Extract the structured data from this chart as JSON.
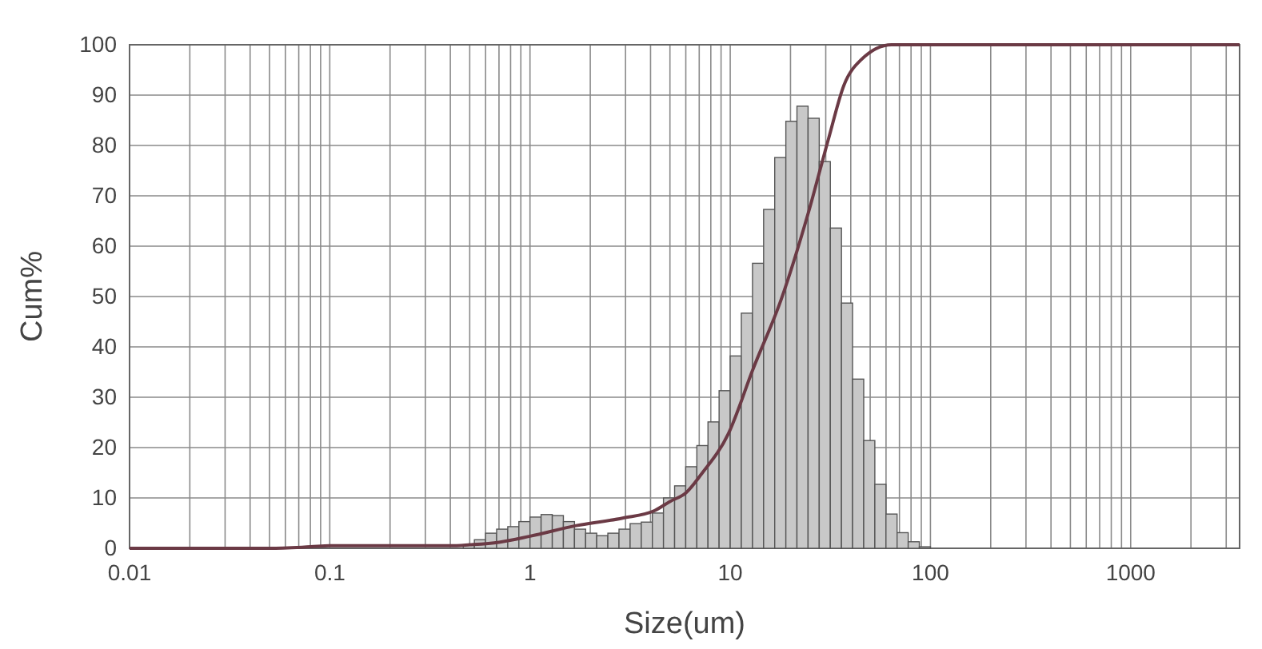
{
  "chart_data": {
    "type": "histogram",
    "xlabel": "Size(um)",
    "ylabel": "Cum%",
    "log": "x",
    "grid": true,
    "xlim": [
      0.01,
      3500
    ],
    "ylim": [
      0,
      100
    ],
    "xticks": [
      0.01,
      {
        "value": 0.02,
        "label": null
      },
      {
        "value": 0.03,
        "label": null
      },
      {
        "value": 0.04,
        "label": null
      },
      {
        "value": 0.05,
        "label": null
      },
      {
        "value": 0.06,
        "label": null
      },
      {
        "value": 0.07,
        "label": null
      },
      {
        "value": 0.08,
        "label": null
      },
      {
        "value": 0.09,
        "label": null
      },
      0.1,
      {
        "value": 0.2,
        "label": null
      },
      {
        "value": 0.3,
        "label": null
      },
      {
        "value": 0.4,
        "label": null
      },
      {
        "value": 0.5,
        "label": null
      },
      {
        "value": 0.6,
        "label": null
      },
      {
        "value": 0.7,
        "label": null
      },
      {
        "value": 0.8,
        "label": null
      },
      {
        "value": 0.9,
        "label": null
      },
      1,
      {
        "value": 2,
        "label": null
      },
      {
        "value": 3,
        "label": null
      },
      {
        "value": 4,
        "label": null
      },
      {
        "value": 5,
        "label": null
      },
      {
        "value": 6,
        "label": null
      },
      {
        "value": 7,
        "label": null
      },
      {
        "value": 8,
        "label": null
      },
      {
        "value": 9,
        "label": null
      },
      10,
      {
        "value": 20,
        "label": null
      },
      {
        "value": 30,
        "label": null
      },
      {
        "value": 40,
        "label": null
      },
      {
        "value": 50,
        "label": null
      },
      {
        "value": 60,
        "label": null
      },
      {
        "value": 70,
        "label": null
      },
      {
        "value": 80,
        "label": null
      },
      {
        "value": 90,
        "label": null
      },
      100,
      {
        "value": 200,
        "label": null
      },
      {
        "value": 300,
        "label": null
      },
      {
        "value": 400,
        "label": null
      },
      {
        "value": 500,
        "label": null
      },
      {
        "value": 600,
        "label": null
      },
      {
        "value": 700,
        "label": null
      },
      {
        "value": 800,
        "label": null
      },
      {
        "value": 900,
        "label": null
      },
      1000,
      {
        "value": 2000,
        "label": null
      },
      {
        "value": 3000,
        "label": null
      }
    ],
    "yticks": [
      0,
      10,
      20,
      30,
      40,
      50,
      60,
      70,
      80,
      90,
      100
    ],
    "series": [
      {
        "color": "#c8c8c8",
        "bins": [
          0.1136,
          0.1292,
          0.1468,
          0.1668,
          0.1896,
          0.2154,
          0.2448,
          0.2783,
          0.3162,
          0.3594,
          0.4084,
          0.4642,
          0.5275,
          0.5995,
          0.6813,
          0.7743,
          0.8799,
          1,
          1.136,
          1.292,
          1.468,
          1.668,
          1.896,
          2.154,
          2.448,
          2.783,
          3.162,
          3.594,
          4.084,
          4.642,
          5.275,
          5.995,
          6.813,
          7.743,
          8.799,
          10,
          11.36,
          12.92,
          14.68,
          16.68,
          18.96,
          21.54,
          24.48,
          27.83,
          31.62,
          35.94,
          40.84,
          46.42,
          52.75,
          59.95,
          68.13,
          77.43,
          87.99,
          100
        ],
        "values": [
          0,
          0,
          0,
          0,
          0,
          0,
          0,
          0,
          0,
          0,
          0,
          0.6,
          1.7,
          3,
          3.8,
          4.3,
          5.3,
          6.2,
          6.7,
          6.5,
          5.3,
          3.8,
          3,
          2.5,
          3,
          3.8,
          4.9,
          5.2,
          7,
          10,
          12.4,
          16.2,
          20.4,
          25.1,
          31.3,
          38.2,
          46.7,
          56.6,
          67.3,
          77.6,
          84.8,
          87.8,
          85.4,
          76.8,
          63.6,
          48.7,
          33.6,
          21.4,
          12.7,
          6.8,
          3.1,
          1.3,
          0.3
        ]
      },
      {
        "type": "line",
        "color": "#6b3a45",
        "x": [
          0.01,
          0.05,
          0.08,
          0.1,
          0.4,
          0.5,
          0.7,
          1,
          1.7,
          2.9,
          4.2,
          5,
          6,
          7.2,
          9.8,
          13,
          18,
          24.5,
          31,
          37,
          45,
          64,
          3500
        ],
        "values": [
          0,
          0,
          0.3,
          0.5,
          0.5,
          0.7,
          1.2,
          2.4,
          4.5,
          6,
          7.5,
          9.3,
          11,
          14.8,
          22.8,
          35.6,
          49.5,
          66.5,
          81.4,
          92,
          97,
          100,
          100
        ]
      }
    ]
  }
}
